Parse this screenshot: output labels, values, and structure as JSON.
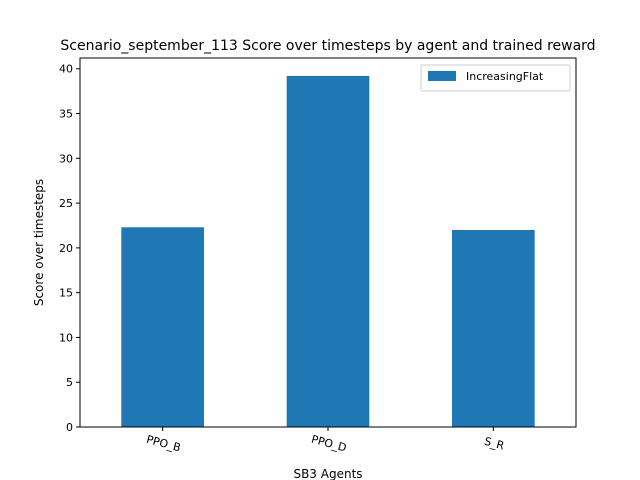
{
  "chart_data": {
    "type": "bar",
    "title": "Scenario_september_113 Score over timesteps by agent and trained reward",
    "xlabel": "SB3 Agents",
    "ylabel": "Score over timesteps",
    "categories": [
      "PPO_B",
      "PPO_D",
      "S_R"
    ],
    "series": [
      {
        "name": "IncreasingFlat",
        "values": [
          22.3,
          39.2,
          22.0
        ]
      }
    ],
    "ylim": [
      0,
      41.2
    ],
    "yticks": [
      0,
      5,
      10,
      15,
      20,
      25,
      30,
      35,
      40
    ],
    "grid": false,
    "legend_position": "top-right",
    "colors": {
      "bar": "#1f77b4"
    }
  }
}
